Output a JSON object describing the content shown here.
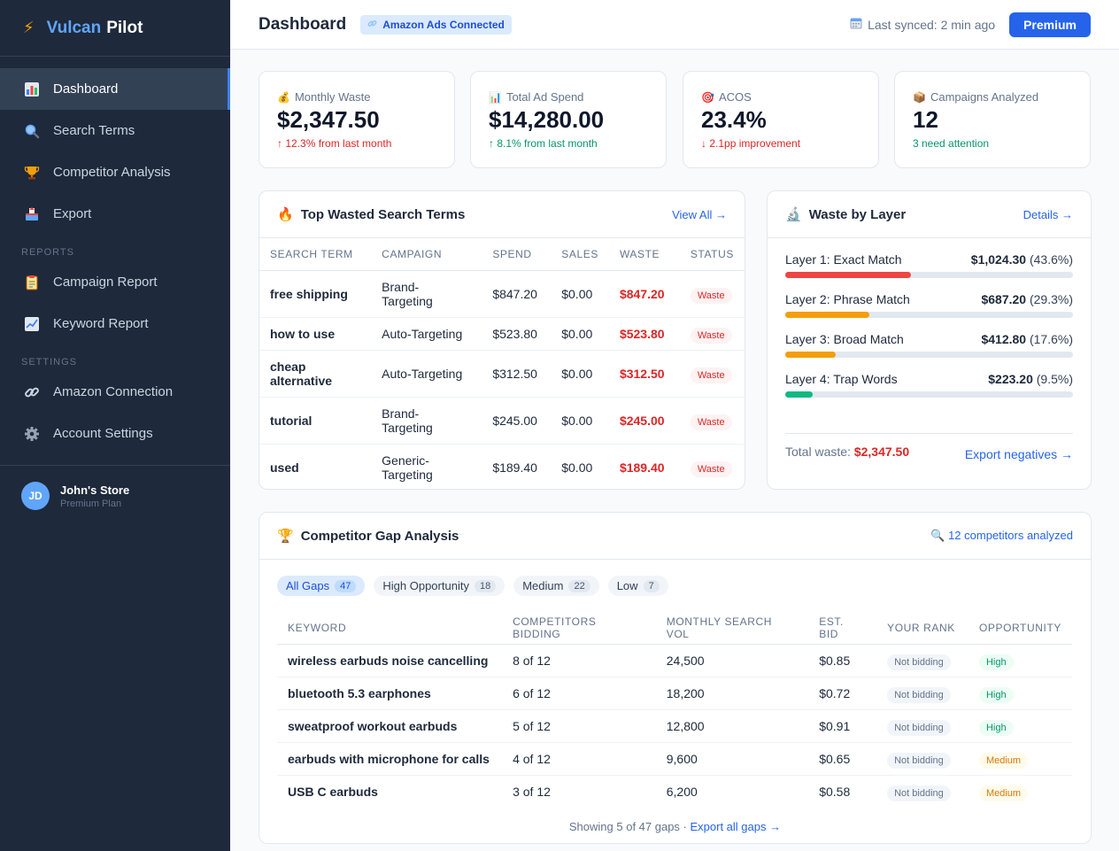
{
  "brand": {
    "bolt": "⚡",
    "name1": "Vulcan",
    "name2": "Pilot"
  },
  "sidebar": {
    "items": [
      {
        "label": "Dashboard",
        "icon": "bar-chart-icon"
      },
      {
        "label": "Search Terms",
        "icon": "magnifier-icon"
      },
      {
        "label": "Competitor Analysis",
        "icon": "trophy-icon"
      },
      {
        "label": "Export",
        "icon": "outbox-icon"
      }
    ],
    "reports_label": "REPORTS",
    "reports": [
      {
        "label": "Campaign Report",
        "icon": "clipboard-icon"
      },
      {
        "label": "Keyword Report",
        "icon": "trend-chart-icon"
      }
    ],
    "settings_label": "SETTINGS",
    "settings": [
      {
        "label": "Amazon Connection",
        "icon": "link-icon"
      },
      {
        "label": "Account Settings",
        "icon": "gear-icon"
      }
    ],
    "user": {
      "initials": "JD",
      "name": "John's Store",
      "plan": "Premium Plan"
    }
  },
  "header": {
    "title": "Dashboard",
    "badge": "Amazon Ads Connected",
    "sync": "Last synced: 2 min ago",
    "premium": "Premium"
  },
  "stats": [
    {
      "label": "Monthly Waste",
      "icon": "money-bag-icon",
      "value": "$2,347.50",
      "sub": "↑ 12.3% from last month"
    },
    {
      "label": "Total Ad Spend",
      "icon": "chart-icon",
      "value": "$14,280.00",
      "sub": "↑ 8.1% from last month"
    },
    {
      "label": "ACOS",
      "icon": "target-icon",
      "value": "23.4%",
      "sub": "↓ 2.1pp improvement"
    },
    {
      "label": "Campaigns Analyzed",
      "icon": "package-icon",
      "value": "12",
      "sub": "3 need attention"
    }
  ],
  "wasted": {
    "title": "Top Wasted Search Terms",
    "link": "View All →",
    "headers": [
      "SEARCH TERM",
      "CAMPAIGN",
      "SPEND",
      "SALES",
      "WASTE",
      "STATUS"
    ],
    "rows": [
      {
        "term": "free shipping",
        "campaign": "Brand-\nTargeting",
        "spend": "$847.20",
        "sales": "$0.00",
        "waste": "$847.20",
        "status": "Waste"
      },
      {
        "term": "how to use",
        "campaign": "Auto-Targeting",
        "spend": "$523.80",
        "sales": "$0.00",
        "waste": "$523.80",
        "status": "Waste"
      },
      {
        "term": "cheap\nalternative",
        "campaign": "Auto-Targeting",
        "spend": "$312.50",
        "sales": "$0.00",
        "waste": "$312.50",
        "status": "Waste"
      },
      {
        "term": "tutorial",
        "campaign": "Brand-\nTargeting",
        "spend": "$245.00",
        "sales": "$0.00",
        "waste": "$245.00",
        "status": "Waste"
      },
      {
        "term": "used",
        "campaign": "Generic-\nTargeting",
        "spend": "$189.40",
        "sales": "$0.00",
        "waste": "$189.40",
        "status": "Waste"
      }
    ]
  },
  "layers": {
    "title": "Waste by Layer",
    "link": "Details →",
    "items": [
      {
        "name": "Layer 1: Exact Match",
        "amount": "$1,024.30",
        "pct": "(43.6%)",
        "fraction": 0.436,
        "color": "#ef4444"
      },
      {
        "name": "Layer 2: Phrase Match",
        "amount": "$687.20",
        "pct": "(29.3%)",
        "fraction": 0.293,
        "color": "#f59e0b"
      },
      {
        "name": "Layer 3: Broad Match",
        "amount": "$412.80",
        "pct": "(17.6%)",
        "fraction": 0.176,
        "color": "#f59e0b"
      },
      {
        "name": "Layer 4: Trap Words",
        "amount": "$223.20",
        "pct": "(9.5%)",
        "fraction": 0.095,
        "color": "#10b981"
      }
    ],
    "total_label": "Total waste:",
    "total_value": "$2,347.50",
    "export": "Export negatives →"
  },
  "gap": {
    "title": "Competitor Gap Analysis",
    "analyzed": "12 competitors analyzed",
    "chips": [
      {
        "label": "All Gaps",
        "count": "47"
      },
      {
        "label": "High Opportunity",
        "count": "18"
      },
      {
        "label": "Medium",
        "count": "22"
      },
      {
        "label": "Low",
        "count": "7"
      }
    ],
    "headers": [
      "KEYWORD",
      "COMPETITORS BIDDING",
      "MONTHLY SEARCH VOL",
      "EST. BID",
      "YOUR RANK",
      "OPPORTUNITY"
    ],
    "rows": [
      {
        "keyword": "wireless earbuds noise cancelling",
        "bidding": "8 of 12",
        "volume": "24,500",
        "bid": "$0.85",
        "rank": "Not bidding",
        "opp": "High"
      },
      {
        "keyword": "bluetooth 5.3 earphones",
        "bidding": "6 of 12",
        "volume": "18,200",
        "bid": "$0.72",
        "rank": "Not bidding",
        "opp": "High"
      },
      {
        "keyword": "sweatproof workout earbuds",
        "bidding": "5 of 12",
        "volume": "12,800",
        "bid": "$0.91",
        "rank": "Not bidding",
        "opp": "High"
      },
      {
        "keyword": "earbuds with microphone for calls",
        "bidding": "4 of 12",
        "volume": "9,600",
        "bid": "$0.65",
        "rank": "Not bidding",
        "opp": "Medium"
      },
      {
        "keyword": "USB C earbuds",
        "bidding": "3 of 12",
        "volume": "6,200",
        "bid": "$0.58",
        "rank": "Not bidding",
        "opp": "Medium"
      }
    ],
    "footer": "Showing 5 of 47 gaps ·",
    "export": "Export all gaps →"
  }
}
